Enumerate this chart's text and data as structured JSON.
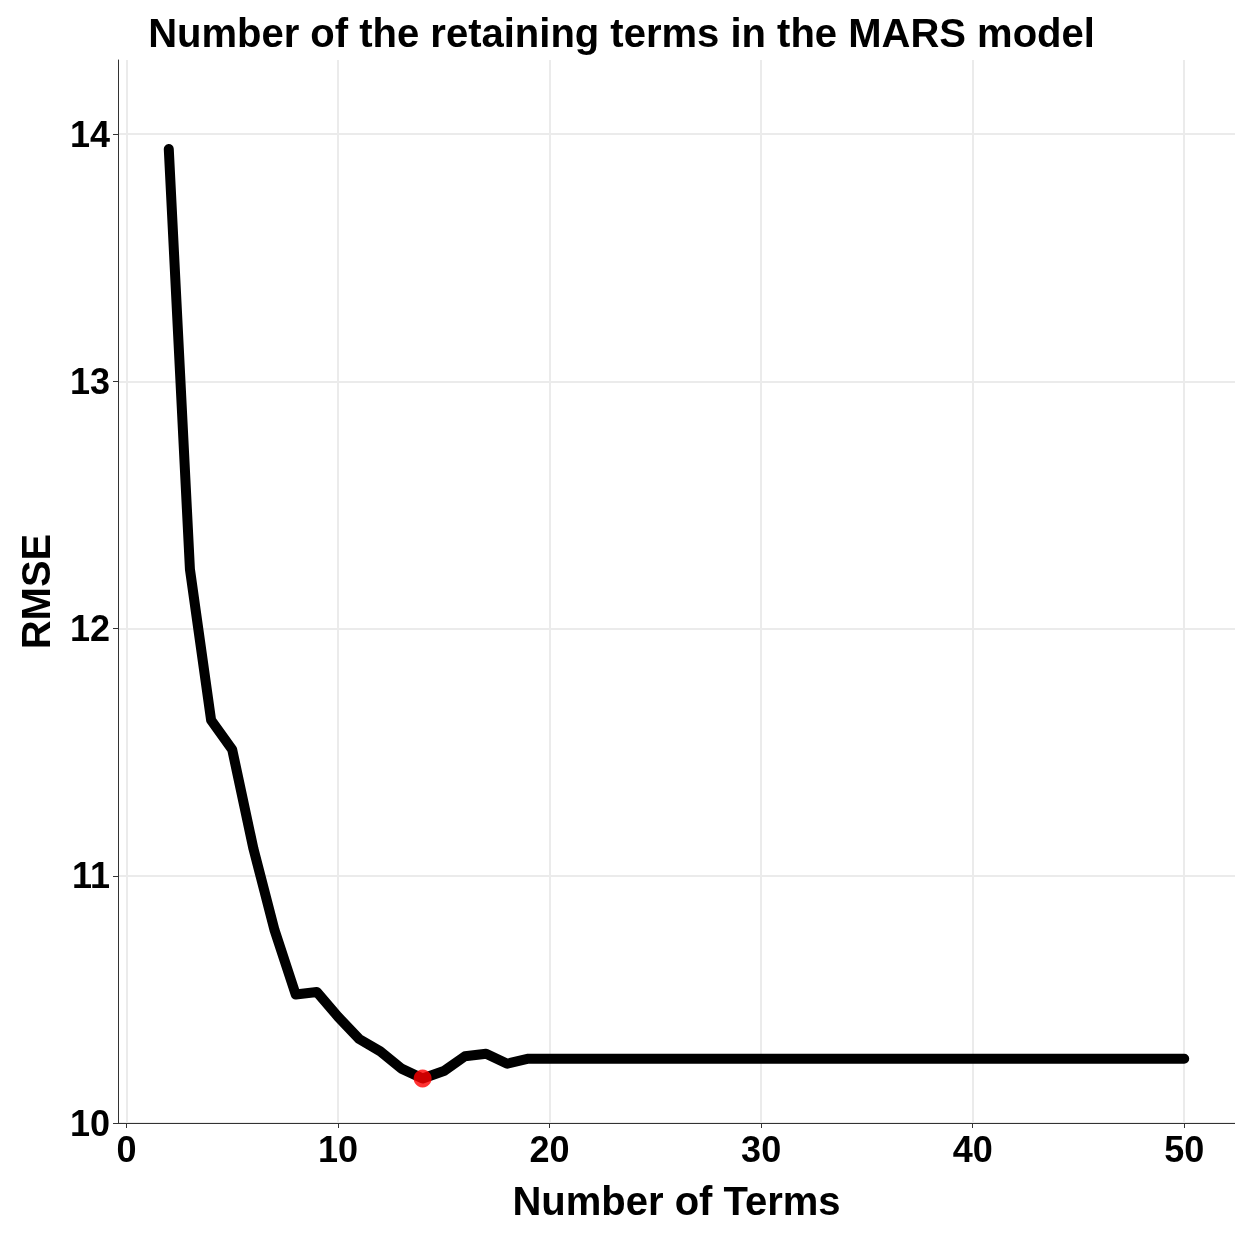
{
  "chart_data": {
    "type": "line",
    "title": "Number of the retaining terms in the MARS model",
    "xlabel": "Number of Terms",
    "ylabel": "RMSE",
    "series": [
      {
        "color": "#000000",
        "marker": "none",
        "x": [
          2,
          3,
          4,
          5,
          6,
          7,
          8,
          9,
          10,
          11,
          12,
          13,
          14,
          15,
          16,
          17,
          18,
          19,
          20,
          21,
          22,
          25,
          30,
          35,
          40,
          45,
          50
        ],
        "values": [
          13.94,
          12.24,
          11.63,
          11.51,
          11.11,
          10.78,
          10.52,
          10.53,
          10.43,
          10.34,
          10.29,
          10.22,
          10.18,
          10.21,
          10.27,
          10.28,
          10.24,
          10.26,
          10.26,
          10.26,
          10.26,
          10.26,
          10.26,
          10.26,
          10.26,
          10.26,
          10.26
        ]
      },
      {
        "type": "scatter",
        "color": "#ff0000",
        "marker": "circle",
        "x": [
          14
        ],
        "values": [
          10.18
        ]
      }
    ],
    "xlim": [
      -0.4,
      52.4
    ],
    "xticks": [
      0,
      10,
      20,
      30,
      40,
      50
    ],
    "ylim": [
      10,
      14.3
    ],
    "yticks": [
      10,
      11,
      12,
      13,
      14
    ],
    "grid": true
  }
}
